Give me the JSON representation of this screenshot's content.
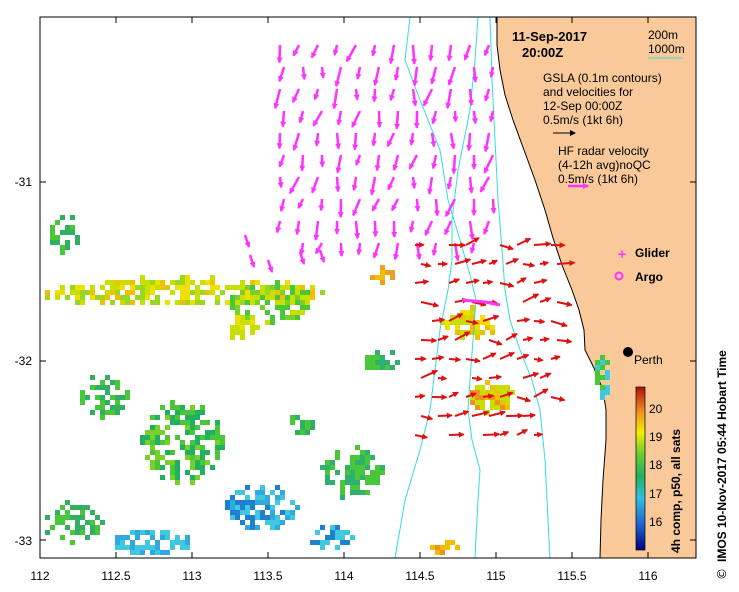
{
  "map": {
    "title_date": "11-Sep-2017",
    "title_time": "20:00Z",
    "depth_labels": [
      "200m",
      "1000m"
    ],
    "gsla_text": [
      "GSLA (0.1m contours)",
      "and velocities for",
      "12-Sep 00:00Z",
      "0.5m/s (1kt 6h)"
    ],
    "radar_text": [
      "HF radar velocity",
      "(4-12h avg)noQC",
      "0.5m/s (1kt 6h)"
    ],
    "legend_glider": "Glider",
    "legend_argo": "Argo",
    "place_label": "Perth",
    "colorbar_title": "4h comp, p50, all sats",
    "colorbar_ticks": [
      "20",
      "19",
      "18",
      "17",
      "16"
    ],
    "credit": "IMOS 10-Nov-2017 05:44 Hobart Time",
    "copyright_symbol": "©",
    "x_ticks": [
      "112",
      "112.5",
      "113",
      "113.5",
      "114",
      "114.5",
      "115",
      "115.5",
      "116"
    ],
    "y_ticks": [
      "-31",
      "-32",
      "-33"
    ],
    "colors": {
      "land": "#f9c99a",
      "contour": "#33dddd",
      "gsla_arrow": "#ff33ff",
      "radar_arrow": "#dd1111",
      "glider": "#ff33ff"
    }
  }
}
